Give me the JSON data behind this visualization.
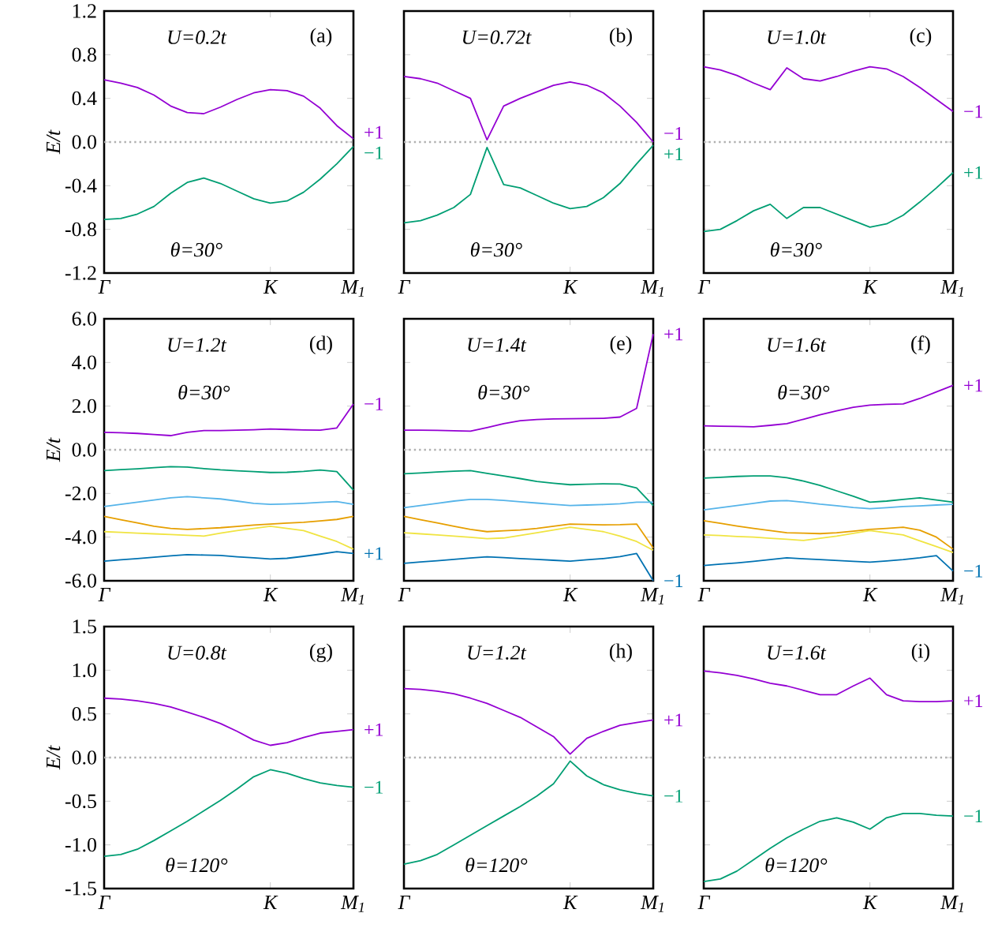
{
  "chart_data": [
    {
      "type": "line",
      "ylabel": "E/t",
      "annotations": [
        "U=0.2t",
        "(a)",
        "θ=30°"
      ],
      "categories": [
        "Γ",
        null,
        null,
        null,
        null,
        null,
        null,
        null,
        null,
        null,
        "K",
        null,
        null,
        null,
        null,
        "M$_{1}$"
      ],
      "ylim": [
        -1.2,
        1.2
      ],
      "yticks": [
        {
          "value": -1.2,
          "label": "-1.2"
        },
        {
          "value": -0.8,
          "label": "-0.8"
        },
        {
          "value": -0.4,
          "label": "-0.4"
        },
        {
          "value": 0,
          "label": "0.0"
        },
        {
          "value": 0.4,
          "label": "0.4"
        },
        {
          "value": 0.8,
          "label": "0.8"
        },
        {
          "value": 1.2,
          "label": "1.2"
        }
      ],
      "ref_lines": [
        {
          "axis": "y",
          "value": 0,
          "color": "#b0b0b0",
          "line_style": "dotted"
        }
      ],
      "series": [
        {
          "name": "+1",
          "color": "#9400d3",
          "values": [
            0.57,
            0.54,
            0.5,
            0.43,
            0.33,
            0.27,
            0.26,
            0.32,
            0.39,
            0.45,
            0.48,
            0.47,
            0.42,
            0.31,
            0.15,
            0.03
          ]
        },
        {
          "name": "−1",
          "color": "#009e73",
          "values": [
            -0.71,
            -0.7,
            -0.66,
            -0.59,
            -0.47,
            -0.37,
            -0.33,
            -0.38,
            -0.45,
            -0.52,
            -0.56,
            -0.54,
            -0.46,
            -0.34,
            -0.2,
            -0.04
          ]
        }
      ]
    },
    {
      "type": "line",
      "tick_labels": "x",
      "annotations": [
        "U=0.72t",
        "(b)",
        "θ=30°"
      ],
      "categories": [
        "Γ",
        null,
        null,
        null,
        null,
        null,
        null,
        null,
        null,
        null,
        "K",
        null,
        null,
        null,
        null,
        "M$_{1}$"
      ],
      "ylim": [
        -1.2,
        1.2
      ],
      "yticks": [
        -1.2,
        -0.8,
        -0.4,
        0,
        0.4,
        0.8,
        1.2
      ],
      "ref_lines": [
        {
          "axis": "y",
          "value": 0,
          "color": "#b0b0b0",
          "line_style": "dotted"
        }
      ],
      "series": [
        {
          "name": "−1",
          "color": "#9400d3",
          "values": [
            0.6,
            0.58,
            0.54,
            0.47,
            0.4,
            0.02,
            0.33,
            0.4,
            0.46,
            0.52,
            0.55,
            0.52,
            0.45,
            0.33,
            0.18,
            0.0
          ]
        },
        {
          "name": "+1",
          "color": "#009e73",
          "values": [
            -0.74,
            -0.72,
            -0.67,
            -0.6,
            -0.48,
            -0.05,
            -0.39,
            -0.42,
            -0.49,
            -0.56,
            -0.61,
            -0.59,
            -0.51,
            -0.38,
            -0.2,
            -0.03
          ]
        }
      ]
    },
    {
      "type": "line",
      "tick_labels": "x",
      "annotations": [
        "U=1.0t",
        "(c)",
        "θ=30°"
      ],
      "categories": [
        "Γ",
        null,
        null,
        null,
        null,
        null,
        null,
        null,
        null,
        null,
        "K",
        null,
        null,
        null,
        null,
        "M$_{1}$"
      ],
      "ylim": [
        -1.2,
        1.2
      ],
      "yticks": [
        -1.2,
        -0.8,
        -0.4,
        0,
        0.4,
        0.8,
        1.2
      ],
      "ref_lines": [
        {
          "axis": "y",
          "value": 0,
          "color": "#b0b0b0",
          "line_style": "dotted"
        }
      ],
      "series": [
        {
          "name": "−1",
          "color": "#9400d3",
          "values": [
            0.69,
            0.66,
            0.61,
            0.54,
            0.48,
            0.68,
            0.58,
            0.56,
            0.6,
            0.65,
            0.69,
            0.67,
            0.6,
            0.5,
            0.39,
            0.28
          ]
        },
        {
          "name": "+1",
          "color": "#009e73",
          "values": [
            -0.82,
            -0.8,
            -0.72,
            -0.63,
            -0.57,
            -0.7,
            -0.6,
            -0.6,
            -0.66,
            -0.72,
            -0.78,
            -0.75,
            -0.67,
            -0.55,
            -0.42,
            -0.28
          ]
        }
      ]
    },
    {
      "type": "line",
      "ylabel": "E/t",
      "annotations": [
        "U=1.2t",
        "(d)",
        "θ=30°"
      ],
      "categories": [
        "Γ",
        null,
        null,
        null,
        null,
        null,
        null,
        null,
        null,
        null,
        "K",
        null,
        null,
        null,
        null,
        "M$_{1}$"
      ],
      "ylim": [
        -6,
        6
      ],
      "yticks": [
        {
          "value": -6,
          "label": "-6.0"
        },
        {
          "value": -4,
          "label": "-4.0"
        },
        {
          "value": -2,
          "label": "-2.0"
        },
        {
          "value": 0,
          "label": "0.0"
        },
        {
          "value": 2,
          "label": "2.0"
        },
        {
          "value": 4,
          "label": "4.0"
        },
        {
          "value": 6,
          "label": "6.0"
        }
      ],
      "ref_lines": [
        {
          "axis": "y",
          "value": 0,
          "color": "#b0b0b0",
          "line_style": "dotted"
        }
      ],
      "series": [
        {
          "name": "−1",
          "color": "#9400d3",
          "values": [
            0.8,
            0.78,
            0.75,
            0.7,
            0.65,
            0.8,
            0.88,
            0.88,
            0.9,
            0.92,
            0.95,
            0.93,
            0.91,
            0.9,
            1.0,
            2.1
          ]
        },
        {
          "color": "#009e73",
          "values": [
            -0.95,
            -0.91,
            -0.87,
            -0.82,
            -0.77,
            -0.79,
            -0.86,
            -0.92,
            -0.96,
            -1.0,
            -1.04,
            -1.03,
            -0.99,
            -0.93,
            -1.0,
            -1.85
          ]
        },
        {
          "color": "#56b4e9",
          "values": [
            -2.6,
            -2.5,
            -2.4,
            -2.3,
            -2.2,
            -2.15,
            -2.2,
            -2.25,
            -2.35,
            -2.45,
            -2.5,
            -2.48,
            -2.45,
            -2.41,
            -2.37,
            -2.5
          ]
        },
        {
          "color": "#e69f00",
          "values": [
            -3.05,
            -3.2,
            -3.35,
            -3.5,
            -3.6,
            -3.65,
            -3.61,
            -3.57,
            -3.51,
            -3.45,
            -3.4,
            -3.36,
            -3.32,
            -3.26,
            -3.19,
            -3.05
          ]
        },
        {
          "color": "#f0e442",
          "values": [
            -3.75,
            -3.78,
            -3.82,
            -3.85,
            -3.88,
            -3.92,
            -3.95,
            -3.82,
            -3.7,
            -3.6,
            -3.5,
            -3.6,
            -3.7,
            -3.95,
            -4.2,
            -4.55
          ]
        },
        {
          "name": "+1",
          "color": "#0072b2",
          "values": [
            -5.1,
            -5.04,
            -4.98,
            -4.92,
            -4.86,
            -4.8,
            -4.82,
            -4.84,
            -4.9,
            -4.95,
            -5.0,
            -4.97,
            -4.88,
            -4.78,
            -4.67,
            -4.75
          ]
        }
      ]
    },
    {
      "type": "line",
      "tick_labels": "x",
      "annotations": [
        "U=1.4t",
        "(e)",
        "θ=30°"
      ],
      "categories": [
        "Γ",
        null,
        null,
        null,
        null,
        null,
        null,
        null,
        null,
        null,
        "K",
        null,
        null,
        null,
        null,
        "M$_{1}$"
      ],
      "ylim": [
        -6,
        6
      ],
      "yticks": [
        -6,
        -4,
        -2,
        0,
        2,
        4,
        6
      ],
      "ref_lines": [
        {
          "axis": "y",
          "value": 0,
          "color": "#b0b0b0",
          "line_style": "dotted"
        }
      ],
      "series": [
        {
          "name": "+1",
          "color": "#9400d3",
          "values": [
            0.9,
            0.9,
            0.89,
            0.87,
            0.85,
            1.02,
            1.2,
            1.33,
            1.39,
            1.41,
            1.42,
            1.43,
            1.44,
            1.5,
            1.9,
            5.3
          ]
        },
        {
          "color": "#009e73",
          "values": [
            -1.1,
            -1.06,
            -1.02,
            -0.98,
            -0.95,
            -1.08,
            -1.2,
            -1.32,
            -1.45,
            -1.53,
            -1.6,
            -1.58,
            -1.56,
            -1.57,
            -1.75,
            -2.55
          ]
        },
        {
          "color": "#56b4e9",
          "values": [
            -2.65,
            -2.55,
            -2.45,
            -2.35,
            -2.27,
            -2.27,
            -2.32,
            -2.38,
            -2.44,
            -2.5,
            -2.55,
            -2.53,
            -2.51,
            -2.47,
            -2.4,
            -2.4
          ]
        },
        {
          "color": "#e69f00",
          "values": [
            -3.05,
            -3.2,
            -3.35,
            -3.5,
            -3.65,
            -3.75,
            -3.71,
            -3.67,
            -3.6,
            -3.5,
            -3.4,
            -3.42,
            -3.44,
            -3.43,
            -3.4,
            -4.5
          ]
        },
        {
          "color": "#f0e442",
          "values": [
            -3.8,
            -3.85,
            -3.9,
            -3.95,
            -4.01,
            -4.07,
            -4.04,
            -3.92,
            -3.8,
            -3.67,
            -3.55,
            -3.65,
            -3.75,
            -3.95,
            -4.2,
            -4.6
          ]
        },
        {
          "name": "−1",
          "color": "#0072b2",
          "values": [
            -5.2,
            -5.14,
            -5.08,
            -5.02,
            -4.96,
            -4.9,
            -4.94,
            -4.98,
            -5.02,
            -5.06,
            -5.1,
            -5.04,
            -4.98,
            -4.89,
            -4.75,
            -6.0
          ]
        }
      ]
    },
    {
      "type": "line",
      "tick_labels": "x",
      "annotations": [
        "U=1.6t",
        "(f)",
        "θ=30°"
      ],
      "categories": [
        "Γ",
        null,
        null,
        null,
        null,
        null,
        null,
        null,
        null,
        null,
        "K",
        null,
        null,
        null,
        null,
        "M$_{1}$"
      ],
      "ylim": [
        -6,
        6
      ],
      "yticks": [
        -6,
        -4,
        -2,
        0,
        2,
        4,
        6
      ],
      "ref_lines": [
        {
          "axis": "y",
          "value": 0,
          "color": "#b0b0b0",
          "line_style": "dotted"
        }
      ],
      "series": [
        {
          "name": "+1",
          "color": "#9400d3",
          "values": [
            1.1,
            1.08,
            1.07,
            1.05,
            1.12,
            1.2,
            1.4,
            1.6,
            1.78,
            1.95,
            2.05,
            2.08,
            2.1,
            2.35,
            2.65,
            2.95
          ]
        },
        {
          "color": "#009e73",
          "values": [
            -1.3,
            -1.26,
            -1.22,
            -1.2,
            -1.2,
            -1.28,
            -1.43,
            -1.63,
            -1.88,
            -2.13,
            -2.4,
            -2.35,
            -2.27,
            -2.2,
            -2.3,
            -2.4
          ]
        },
        {
          "color": "#56b4e9",
          "values": [
            -2.75,
            -2.65,
            -2.55,
            -2.45,
            -2.35,
            -2.33,
            -2.4,
            -2.49,
            -2.56,
            -2.64,
            -2.7,
            -2.65,
            -2.6,
            -2.57,
            -2.53,
            -2.5
          ]
        },
        {
          "color": "#e69f00",
          "values": [
            -3.25,
            -3.37,
            -3.49,
            -3.6,
            -3.7,
            -3.8,
            -3.82,
            -3.84,
            -3.8,
            -3.73,
            -3.65,
            -3.6,
            -3.55,
            -3.68,
            -4.0,
            -4.55
          ]
        },
        {
          "color": "#f0e442",
          "values": [
            -3.9,
            -3.93,
            -3.97,
            -4.0,
            -4.05,
            -4.1,
            -4.15,
            -4.05,
            -3.95,
            -3.83,
            -3.7,
            -3.8,
            -3.9,
            -4.17,
            -4.43,
            -4.7
          ]
        },
        {
          "name": "−1",
          "color": "#0072b2",
          "values": [
            -5.3,
            -5.24,
            -5.18,
            -5.11,
            -5.03,
            -4.95,
            -4.99,
            -5.03,
            -5.07,
            -5.11,
            -5.15,
            -5.09,
            -5.03,
            -4.95,
            -4.85,
            -5.55
          ]
        }
      ]
    },
    {
      "type": "line",
      "ylabel": "E/t",
      "annotations": [
        "U=0.8t",
        "(g)",
        "θ=120°"
      ],
      "categories": [
        "Γ",
        null,
        null,
        null,
        null,
        null,
        null,
        null,
        null,
        null,
        "K",
        null,
        null,
        null,
        null,
        "M$_{1}$"
      ],
      "ylim": [
        -1.5,
        1.5
      ],
      "yticks": [
        {
          "value": -1.5,
          "label": "-1.5"
        },
        {
          "value": -1,
          "label": "-1.0"
        },
        {
          "value": -0.5,
          "label": "-0.5"
        },
        {
          "value": 0,
          "label": "0.0"
        },
        {
          "value": 0.5,
          "label": "0.5"
        },
        {
          "value": 1,
          "label": "1.0"
        },
        {
          "value": 1.5,
          "label": "1.5"
        }
      ],
      "ref_lines": [
        {
          "axis": "y",
          "value": 0,
          "color": "#b0b0b0",
          "line_style": "dotted"
        }
      ],
      "series": [
        {
          "name": "+1",
          "color": "#9400d3",
          "values": [
            0.68,
            0.67,
            0.65,
            0.62,
            0.58,
            0.52,
            0.46,
            0.39,
            0.3,
            0.2,
            0.14,
            0.17,
            0.23,
            0.28,
            0.3,
            0.32
          ]
        },
        {
          "name": "−1",
          "color": "#009e73",
          "values": [
            -1.13,
            -1.11,
            -1.05,
            -0.95,
            -0.84,
            -0.73,
            -0.61,
            -0.49,
            -0.36,
            -0.22,
            -0.14,
            -0.18,
            -0.24,
            -0.29,
            -0.32,
            -0.34
          ]
        }
      ]
    },
    {
      "type": "line",
      "tick_labels": "x",
      "annotations": [
        "U=1.2t",
        "(h)",
        "θ=120°"
      ],
      "categories": [
        "Γ",
        null,
        null,
        null,
        null,
        null,
        null,
        null,
        null,
        null,
        "K",
        null,
        null,
        null,
        null,
        "M$_{1}$"
      ],
      "ylim": [
        -1.5,
        1.5
      ],
      "yticks": [
        -1.5,
        -1,
        -0.5,
        0,
        0.5,
        1,
        1.5
      ],
      "ref_lines": [
        {
          "axis": "y",
          "value": 0,
          "color": "#b0b0b0",
          "line_style": "dotted"
        }
      ],
      "series": [
        {
          "name": "+1",
          "color": "#9400d3",
          "values": [
            0.79,
            0.78,
            0.76,
            0.73,
            0.68,
            0.62,
            0.54,
            0.46,
            0.35,
            0.24,
            0.04,
            0.22,
            0.3,
            0.37,
            0.4,
            0.43
          ]
        },
        {
          "name": "−1",
          "color": "#009e73",
          "values": [
            -1.22,
            -1.18,
            -1.11,
            -1.0,
            -0.89,
            -0.78,
            -0.67,
            -0.56,
            -0.44,
            -0.3,
            -0.04,
            -0.21,
            -0.31,
            -0.37,
            -0.41,
            -0.44
          ]
        }
      ]
    },
    {
      "type": "line",
      "tick_labels": "x",
      "annotations": [
        "U=1.6t",
        "(i)",
        "θ=120°"
      ],
      "categories": [
        "Γ",
        null,
        null,
        null,
        null,
        null,
        null,
        null,
        null,
        null,
        "K",
        null,
        null,
        null,
        null,
        "M$_{1}$"
      ],
      "ylim": [
        -1.5,
        1.5
      ],
      "yticks": [
        -1.5,
        -1,
        -0.5,
        0,
        0.5,
        1,
        1.5
      ],
      "ref_lines": [
        {
          "axis": "y",
          "value": 0,
          "color": "#b0b0b0",
          "line_style": "dotted"
        }
      ],
      "series": [
        {
          "name": "+1",
          "color": "#9400d3",
          "values": [
            0.99,
            0.97,
            0.94,
            0.9,
            0.85,
            0.82,
            0.77,
            0.72,
            0.72,
            0.82,
            0.91,
            0.72,
            0.65,
            0.64,
            0.64,
            0.65
          ]
        },
        {
          "name": "−1",
          "color": "#009e73",
          "values": [
            -1.42,
            -1.39,
            -1.3,
            -1.17,
            -1.04,
            -0.92,
            -0.82,
            -0.73,
            -0.69,
            -0.74,
            -0.82,
            -0.69,
            -0.64,
            -0.64,
            -0.66,
            -0.67
          ]
        }
      ]
    }
  ]
}
